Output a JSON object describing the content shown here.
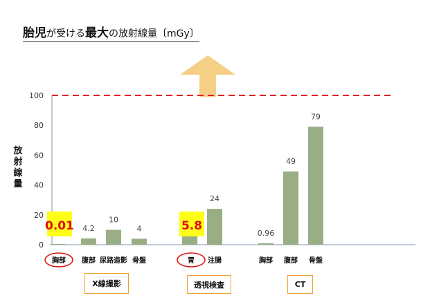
{
  "title": {
    "part1": "胎児",
    "part2": "が受ける",
    "part3": "最大",
    "part4": "の放射線量〔mGy〕"
  },
  "chart_data": {
    "type": "bar",
    "ylabel": "放射線量",
    "ylim": [
      0,
      100
    ],
    "yticks": [
      0,
      20,
      40,
      60,
      80,
      100
    ],
    "reference_line": {
      "value": 100,
      "color": "#e02020",
      "style": "dashed"
    },
    "bar_color": "#9aae86",
    "groups": [
      {
        "name": "X線撮影",
        "categories": [
          "胸部",
          "腹部",
          "尿路造影",
          "骨盤"
        ],
        "values": [
          0.01,
          4.2,
          10,
          4
        ],
        "labels": [
          "0.01",
          "4.2",
          "10",
          "4"
        ]
      },
      {
        "name": "透視検査",
        "categories": [
          "胃",
          "注腸"
        ],
        "values": [
          5.8,
          24
        ],
        "labels": [
          "5.8",
          "24"
        ]
      },
      {
        "name": "CT",
        "categories": [
          "胸部",
          "腹部",
          "骨盤"
        ],
        "values": [
          0.96,
          49,
          79
        ],
        "labels": [
          "0.96",
          "49",
          "79"
        ]
      }
    ],
    "highlighted": [
      {
        "group": 0,
        "index": 0,
        "label": "0.01"
      },
      {
        "group": 1,
        "index": 0,
        "label": "5.8"
      }
    ]
  },
  "colors": {
    "axis": "#aab8c8",
    "highlight_bg": "#ffff1a",
    "highlight_text": "#e01010",
    "circle": "#e01010",
    "arrow": "#f5cf86",
    "group_border": "#f0a030"
  },
  "icons": {
    "arrow": "up-arrow-icon"
  }
}
